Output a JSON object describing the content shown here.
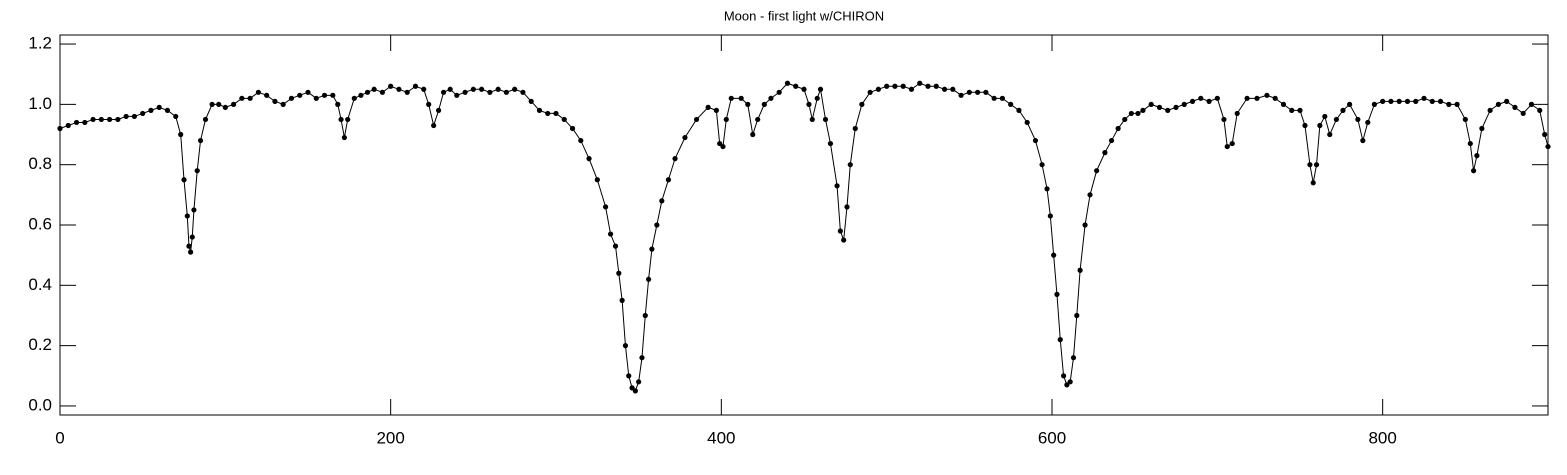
{
  "chart_data": {
    "type": "line",
    "title": "Moon - first light w/CHIRON",
    "color": "#000000",
    "markers": true,
    "xlim": [
      0,
      900
    ],
    "xticks": [
      0,
      200,
      400,
      600,
      800
    ],
    "ylim": [
      -0.03,
      1.23
    ],
    "yticks": [
      {
        "value": 0,
        "label": "0.0"
      },
      0.2,
      0.4,
      0.6,
      0.8,
      {
        "value": 1,
        "label": "1.0"
      },
      1.2
    ],
    "x": [
      0,
      5,
      10,
      15,
      20,
      25,
      30,
      35,
      40,
      45,
      50,
      55,
      60,
      65,
      70,
      73,
      75,
      77,
      78,
      79,
      80,
      81,
      83,
      85,
      88,
      92,
      96,
      100,
      105,
      110,
      115,
      120,
      125,
      130,
      135,
      140,
      145,
      150,
      155,
      160,
      165,
      168,
      170,
      172,
      174,
      178,
      182,
      186,
      190,
      195,
      200,
      205,
      210,
      215,
      220,
      223,
      226,
      229,
      232,
      236,
      240,
      245,
      250,
      255,
      260,
      265,
      270,
      275,
      280,
      285,
      290,
      295,
      300,
      305,
      310,
      315,
      320,
      325,
      330,
      333,
      336,
      338,
      340,
      342,
      344,
      346,
      348,
      350,
      352,
      354,
      356,
      358,
      361,
      364,
      368,
      372,
      378,
      385,
      392,
      397,
      399,
      401,
      403,
      406,
      412,
      416,
      419,
      422,
      426,
      430,
      435,
      440,
      445,
      450,
      453,
      455,
      458,
      460,
      463,
      466,
      470,
      472,
      474,
      476,
      478,
      481,
      485,
      490,
      495,
      500,
      505,
      510,
      515,
      520,
      525,
      530,
      535,
      540,
      545,
      550,
      555,
      560,
      565,
      570,
      575,
      580,
      585,
      590,
      594,
      597,
      599,
      601,
      603,
      605,
      607,
      609,
      611,
      613,
      615,
      617,
      620,
      623,
      627,
      632,
      636,
      640,
      644,
      648,
      652,
      655,
      660,
      665,
      670,
      675,
      680,
      685,
      690,
      695,
      700,
      704,
      706,
      709,
      712,
      718,
      724,
      730,
      735,
      740,
      745,
      750,
      753,
      756,
      758,
      760,
      762,
      765,
      768,
      772,
      776,
      780,
      785,
      788,
      791,
      795,
      800,
      805,
      810,
      815,
      820,
      825,
      830,
      835,
      840,
      845,
      850,
      853,
      855,
      857,
      860,
      865,
      870,
      875,
      880,
      885,
      890,
      895,
      898,
      900
    ],
    "values": [
      0.92,
      0.93,
      0.94,
      0.94,
      0.95,
      0.95,
      0.95,
      0.95,
      0.96,
      0.96,
      0.97,
      0.98,
      0.99,
      0.98,
      0.96,
      0.9,
      0.75,
      0.63,
      0.53,
      0.51,
      0.56,
      0.65,
      0.78,
      0.88,
      0.95,
      1.0,
      1.0,
      0.99,
      1.0,
      1.02,
      1.02,
      1.04,
      1.03,
      1.01,
      1.0,
      1.02,
      1.03,
      1.04,
      1.02,
      1.03,
      1.03,
      1.0,
      0.95,
      0.89,
      0.95,
      1.02,
      1.03,
      1.04,
      1.05,
      1.04,
      1.06,
      1.05,
      1.04,
      1.06,
      1.05,
      1.0,
      0.93,
      0.98,
      1.04,
      1.05,
      1.03,
      1.04,
      1.05,
      1.05,
      1.04,
      1.05,
      1.04,
      1.05,
      1.04,
      1.01,
      0.98,
      0.97,
      0.97,
      0.95,
      0.92,
      0.88,
      0.82,
      0.75,
      0.66,
      0.57,
      0.53,
      0.44,
      0.35,
      0.2,
      0.1,
      0.06,
      0.05,
      0.08,
      0.16,
      0.3,
      0.42,
      0.52,
      0.6,
      0.68,
      0.75,
      0.82,
      0.89,
      0.95,
      0.99,
      0.98,
      0.87,
      0.86,
      0.95,
      1.02,
      1.02,
      1.0,
      0.9,
      0.95,
      1.0,
      1.02,
      1.04,
      1.07,
      1.06,
      1.05,
      1.0,
      0.95,
      1.02,
      1.05,
      0.95,
      0.87,
      0.73,
      0.58,
      0.55,
      0.66,
      0.8,
      0.92,
      1.0,
      1.04,
      1.05,
      1.06,
      1.06,
      1.06,
      1.05,
      1.07,
      1.06,
      1.06,
      1.05,
      1.05,
      1.03,
      1.04,
      1.04,
      1.04,
      1.02,
      1.02,
      1.0,
      0.98,
      0.94,
      0.88,
      0.8,
      0.72,
      0.63,
      0.5,
      0.37,
      0.22,
      0.1,
      0.07,
      0.08,
      0.16,
      0.3,
      0.45,
      0.6,
      0.7,
      0.78,
      0.84,
      0.88,
      0.92,
      0.95,
      0.97,
      0.97,
      0.98,
      1.0,
      0.99,
      0.98,
      0.99,
      1.0,
      1.01,
      1.02,
      1.01,
      1.02,
      0.95,
      0.86,
      0.87,
      0.97,
      1.02,
      1.02,
      1.03,
      1.02,
      1.0,
      0.98,
      0.98,
      0.93,
      0.8,
      0.74,
      0.8,
      0.93,
      0.96,
      0.9,
      0.95,
      0.98,
      1.0,
      0.95,
      0.88,
      0.94,
      1.0,
      1.01,
      1.01,
      1.01,
      1.01,
      1.01,
      1.02,
      1.01,
      1.01,
      1.0,
      1.0,
      0.95,
      0.87,
      0.78,
      0.83,
      0.92,
      0.98,
      1.0,
      1.01,
      0.99,
      0.97,
      1.0,
      0.98,
      0.9,
      0.86
    ]
  }
}
